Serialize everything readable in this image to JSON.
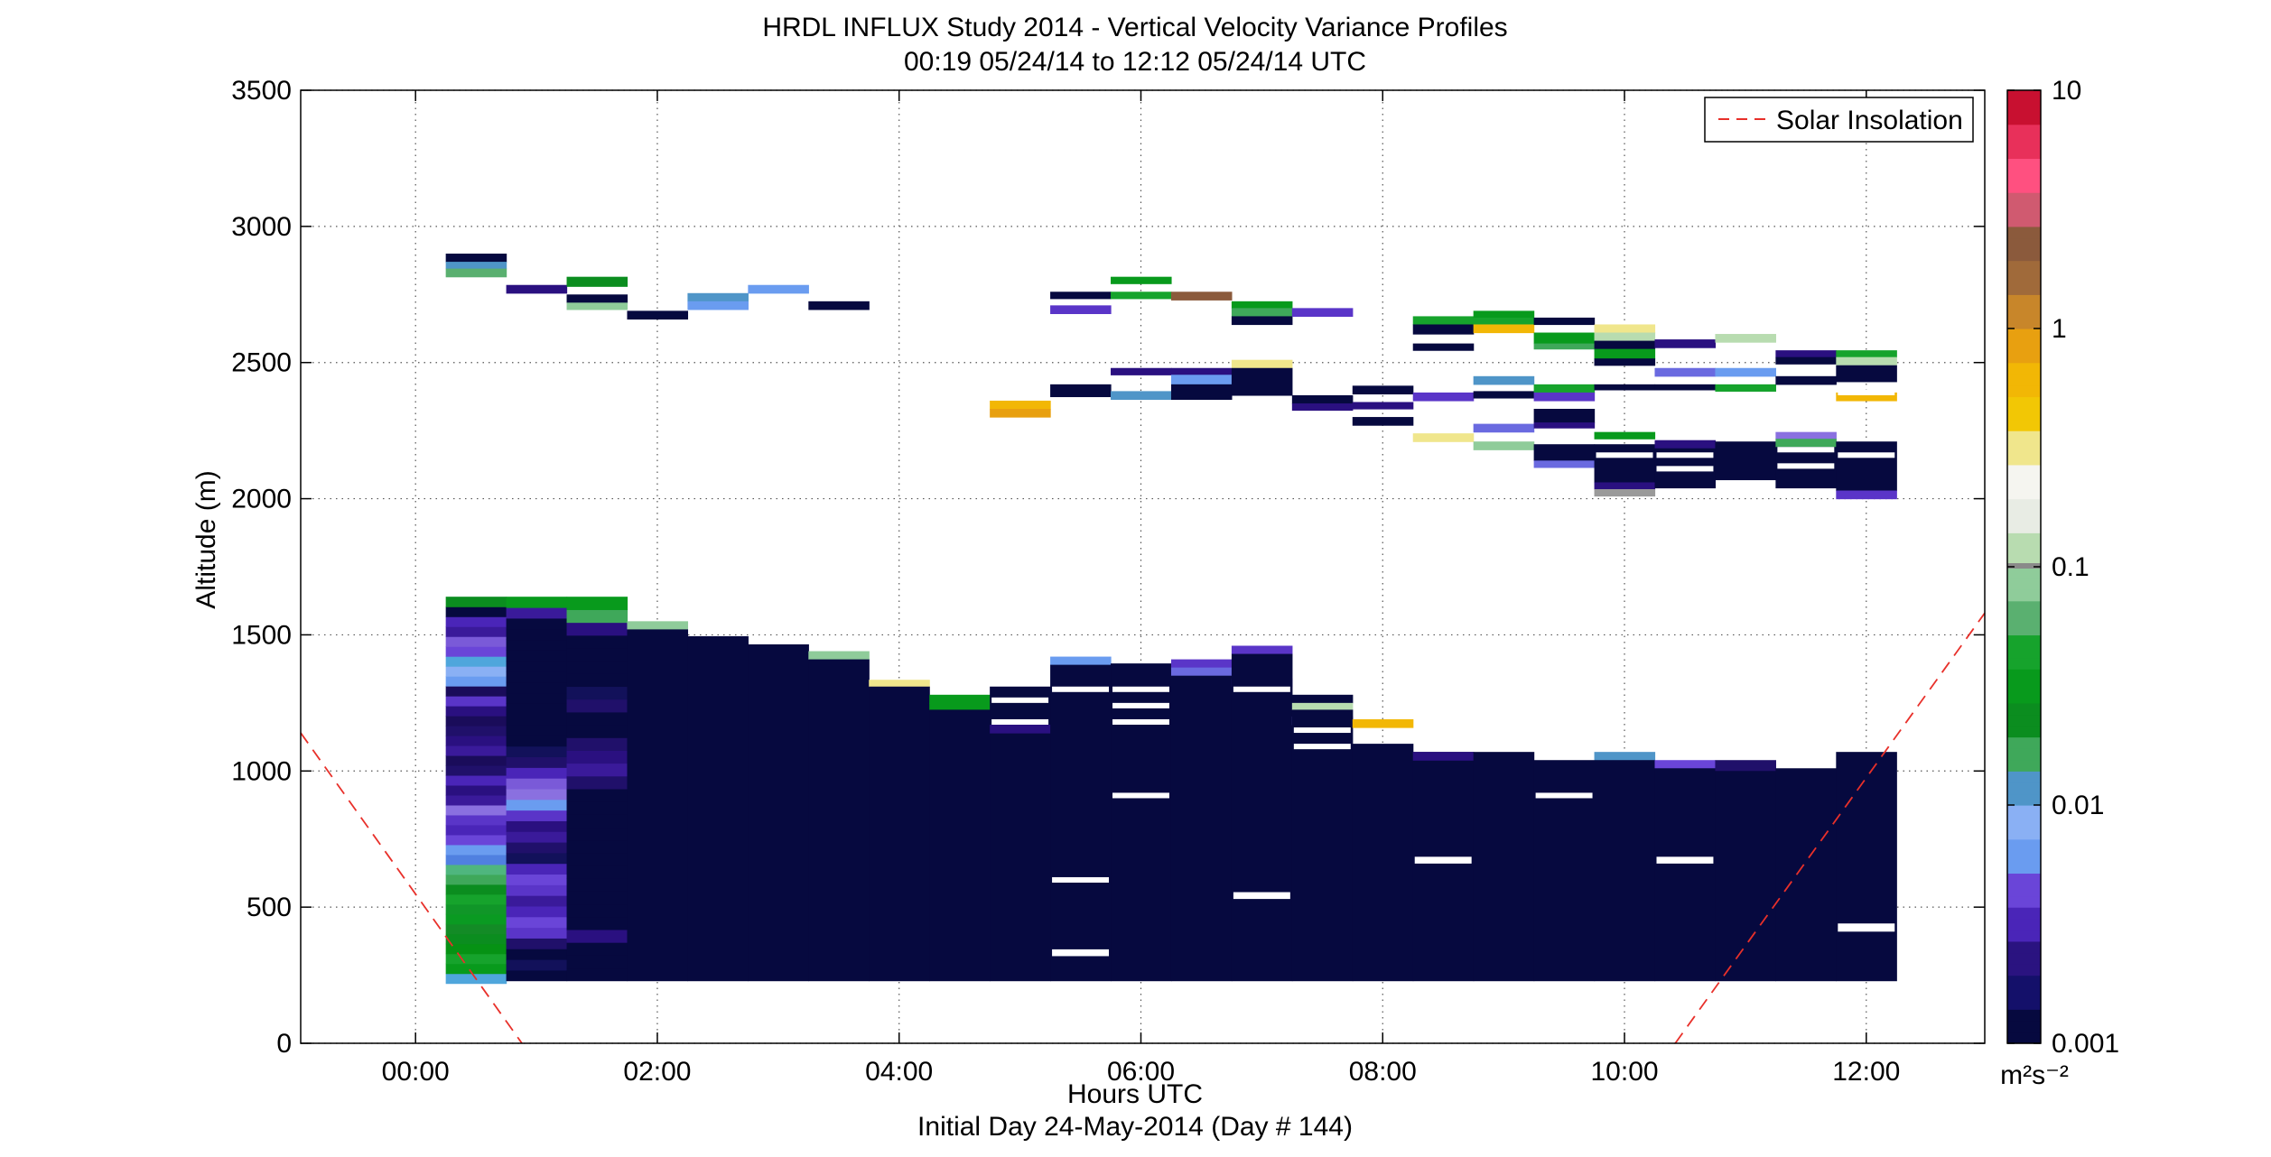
{
  "chart_data": {
    "type": "heatmap",
    "title": "HRDL INFLUX Study 2014 - Vertical Velocity Variance Profiles",
    "subtitle": "00:19 05/24/14 to 12:12 05/24/14  UTC",
    "xlabel": "Hours UTC",
    "xlabel2": "Initial Day 24-May-2014 (Day # 144)",
    "ylabel": "Altitude (m)",
    "xlim": [
      -0.95,
      12.98
    ],
    "ylim": [
      0,
      3500
    ],
    "x_ticks": [
      0,
      2,
      4,
      6,
      8,
      10,
      12
    ],
    "x_tick_labels": [
      "00:00",
      "02:00",
      "04:00",
      "06:00",
      "08:00",
      "10:00",
      "12:00"
    ],
    "y_ticks": [
      0,
      500,
      1000,
      1500,
      2000,
      2500,
      3000,
      3500
    ],
    "y_tick_labels": [
      "0",
      "500",
      "1000",
      "1500",
      "2000",
      "2500",
      "3000",
      "3500"
    ],
    "grid": true,
    "legend": {
      "position": "top-right",
      "entries": [
        "Solar Insolation"
      ]
    },
    "colorbar": {
      "scale": "log",
      "range": [
        0.001,
        10
      ],
      "ticks": [
        0.001,
        0.01,
        0.1,
        1,
        10
      ],
      "tick_labels": [
        "0.001",
        "0.01",
        "0.1",
        "1",
        "10"
      ],
      "unit_label": "m²s⁻²"
    },
    "series": [
      {
        "name": "Solar Insolation",
        "type": "line",
        "style": "dashed",
        "color": "#e8302a",
        "segments": [
          {
            "x": [
              -0.95,
              0.88
            ],
            "y": [
              1140,
              0
            ]
          },
          {
            "x": [
              10.42,
              12.98
            ],
            "y": [
              0,
              1580
            ]
          }
        ]
      }
    ],
    "profiles": [
      {
        "time": 0.5,
        "bottom": 220,
        "top": 1640,
        "stack": [
          "#4fa6dc",
          "#089a1c",
          "#16a32c",
          "#069214",
          "#0b8d1f",
          "#138b26",
          "#0a9a22",
          "#109628",
          "#16a32c",
          "#0b8d1f",
          "#3fa85a",
          "#4fb67e",
          "#5080e0",
          "#6a9cf0",
          "#6a45d8",
          "#4a25b8",
          "#5a35c8",
          "#8a70e0",
          "#3a1a9a",
          "#2a1080",
          "#4a25b8",
          "#20106a",
          "#1a0c5a",
          "#3a1a9a",
          "#2a1080",
          "#20106a",
          "#1a0c5a",
          "#2a1080",
          "#5a35c8",
          "#1a0c5a",
          "#6a9cf0",
          "#8ab0f4",
          "#4fa6dc",
          "#6a45d8",
          "#7a5ad8",
          "#3a1a9a",
          "#4a25b8",
          "#06093f",
          "#0b8d1f"
        ],
        "white_at": []
      },
      {
        "time": 1.0,
        "bottom": 230,
        "top": 1640,
        "stack": [
          "#06093f",
          "#12115a",
          "#06093f",
          "#20106a",
          "#5a35c8",
          "#6a45d8",
          "#4a25b8",
          "#3a1a9a",
          "#5a35c8",
          "#6a45d8",
          "#4a25b8",
          "#12115a",
          "#20106a",
          "#3a1a9a",
          "#2a1080",
          "#5a35c8",
          "#6a9cf0",
          "#8a70e0",
          "#7a5ad8",
          "#4a25b8",
          "#20106a",
          "#12115a",
          "#06093f",
          "#06093f",
          "#06093f",
          "#06093f",
          "#06093f",
          "#06093f",
          "#06093f",
          "#06093f",
          "#06093f",
          "#06093f",
          "#06093f",
          "#06093f",
          "#3a1a9a",
          "#089a1c"
        ],
        "white_at": []
      },
      {
        "time": 1.5,
        "bottom": 230,
        "top": 1640,
        "stack": [
          "#06093f",
          "#06093f",
          "#06093f",
          "#2a1080",
          "#06093f",
          "#06093f",
          "#06093f",
          "#06093f",
          "#06093f",
          "#06093f",
          "#06093f",
          "#06093f",
          "#06093f",
          "#06093f",
          "#06093f",
          "#20106a",
          "#3a1a9a",
          "#2a1080",
          "#20106a",
          "#06093f",
          "#06093f",
          "#20106a",
          "#12115a",
          "#06093f",
          "#06093f",
          "#06093f",
          "#06093f",
          "#2a1080",
          "#3fa85a",
          "#089a1c"
        ],
        "white_at": []
      }
    ],
    "blocks": [
      {
        "t": 0.5,
        "y0": 2870,
        "y1": 2900,
        "c": "#06093f"
      },
      {
        "t": 0.5,
        "y0": 2845,
        "y1": 2870,
        "c": "#4f95c8"
      },
      {
        "t": 0.5,
        "y0": 2815,
        "y1": 2845,
        "c": "#5ab070"
      },
      {
        "t": 1.0,
        "y0": 2755,
        "y1": 2785,
        "c": "#2a1080"
      },
      {
        "t": 1.5,
        "y0": 2780,
        "y1": 2815,
        "c": "#0b8d1f"
      },
      {
        "t": 1.5,
        "y0": 2720,
        "y1": 2750,
        "c": "#06093f"
      },
      {
        "t": 1.5,
        "y0": 2695,
        "y1": 2720,
        "c": "#8fcc9a"
      },
      {
        "t": 2.0,
        "y0": 2660,
        "y1": 2690,
        "c": "#06093f"
      },
      {
        "t": 2.5,
        "y0": 2725,
        "y1": 2755,
        "c": "#4f95c8"
      },
      {
        "t": 2.5,
        "y0": 2695,
        "y1": 2725,
        "c": "#6a9cf0"
      },
      {
        "t": 3.0,
        "y0": 2755,
        "y1": 2785,
        "c": "#6a9cf0"
      },
      {
        "t": 3.5,
        "y0": 2695,
        "y1": 2725,
        "c": "#06093f"
      },
      {
        "t": 5.0,
        "y0": 2330,
        "y1": 2360,
        "c": "#f2b705"
      },
      {
        "t": 5.0,
        "y0": 2300,
        "y1": 2330,
        "c": "#e8a010"
      },
      {
        "t": 5.5,
        "y0": 2735,
        "y1": 2760,
        "c": "#06093f"
      },
      {
        "t": 5.5,
        "y0": 2680,
        "y1": 2710,
        "c": "#5a35c8"
      },
      {
        "t": 5.5,
        "y0": 2375,
        "y1": 2420,
        "c": "#06093f"
      },
      {
        "t": 6.0,
        "y0": 2790,
        "y1": 2815,
        "c": "#089a1c"
      },
      {
        "t": 6.0,
        "y0": 2735,
        "y1": 2760,
        "c": "#16a32c"
      },
      {
        "t": 6.0,
        "y0": 2455,
        "y1": 2480,
        "c": "#2a1080"
      },
      {
        "t": 6.0,
        "y0": 2365,
        "y1": 2395,
        "c": "#4f95c8"
      },
      {
        "t": 6.5,
        "y0": 2730,
        "y1": 2760,
        "c": "#8b5a3c"
      },
      {
        "t": 6.5,
        "y0": 2455,
        "y1": 2480,
        "c": "#2a1080"
      },
      {
        "t": 6.5,
        "y0": 2420,
        "y1": 2455,
        "c": "#6a9cf0"
      },
      {
        "t": 6.5,
        "y0": 2365,
        "y1": 2420,
        "c": "#06093f"
      },
      {
        "t": 7.0,
        "y0": 2700,
        "y1": 2725,
        "c": "#089a1c"
      },
      {
        "t": 7.0,
        "y0": 2670,
        "y1": 2700,
        "c": "#3fa85a"
      },
      {
        "t": 7.0,
        "y0": 2640,
        "y1": 2670,
        "c": "#06093f"
      },
      {
        "t": 7.0,
        "y0": 2480,
        "y1": 2510,
        "c": "#f0e68c"
      },
      {
        "t": 7.0,
        "y0": 2380,
        "y1": 2480,
        "c": "#06093f"
      },
      {
        "t": 7.5,
        "y0": 2670,
        "y1": 2700,
        "c": "#5a35c8"
      },
      {
        "t": 7.5,
        "y0": 2350,
        "y1": 2380,
        "c": "#06093f"
      },
      {
        "t": 7.5,
        "y0": 2325,
        "y1": 2350,
        "c": "#2a1080"
      },
      {
        "t": 8.0,
        "y0": 2385,
        "y1": 2415,
        "c": "#06093f"
      },
      {
        "t": 8.0,
        "y0": 2330,
        "y1": 2355,
        "c": "#2a1080"
      },
      {
        "t": 8.0,
        "y0": 2270,
        "y1": 2300,
        "c": "#06093f"
      },
      {
        "t": 8.5,
        "y0": 2640,
        "y1": 2670,
        "c": "#16a32c"
      },
      {
        "t": 8.5,
        "y0": 2605,
        "y1": 2640,
        "c": "#06093f"
      },
      {
        "t": 8.5,
        "y0": 2545,
        "y1": 2570,
        "c": "#06093f"
      },
      {
        "t": 8.5,
        "y0": 2360,
        "y1": 2390,
        "c": "#5a35c8"
      },
      {
        "t": 8.5,
        "y0": 2210,
        "y1": 2240,
        "c": "#f0e68c"
      },
      {
        "t": 9.0,
        "y0": 2665,
        "y1": 2690,
        "c": "#089a1c"
      },
      {
        "t": 9.0,
        "y0": 2640,
        "y1": 2665,
        "c": "#16a32c"
      },
      {
        "t": 9.0,
        "y0": 2610,
        "y1": 2640,
        "c": "#f2b705"
      },
      {
        "t": 9.0,
        "y0": 2420,
        "y1": 2450,
        "c": "#4f95c8"
      },
      {
        "t": 9.0,
        "y0": 2370,
        "y1": 2395,
        "c": "#06093f"
      },
      {
        "t": 9.0,
        "y0": 2245,
        "y1": 2275,
        "c": "#6a6ae0"
      },
      {
        "t": 9.0,
        "y0": 2180,
        "y1": 2210,
        "c": "#8fcc9a"
      },
      {
        "t": 9.5,
        "y0": 2640,
        "y1": 2665,
        "c": "#06093f"
      },
      {
        "t": 9.5,
        "y0": 2570,
        "y1": 2610,
        "c": "#089a1c"
      },
      {
        "t": 9.5,
        "y0": 2550,
        "y1": 2570,
        "c": "#3fa85a"
      },
      {
        "t": 9.5,
        "y0": 2390,
        "y1": 2420,
        "c": "#16a32c"
      },
      {
        "t": 9.5,
        "y0": 2360,
        "y1": 2390,
        "c": "#5a35c8"
      },
      {
        "t": 9.5,
        "y0": 2280,
        "y1": 2330,
        "c": "#06093f"
      },
      {
        "t": 9.5,
        "y0": 2260,
        "y1": 2280,
        "c": "#2a1080"
      },
      {
        "t": 9.5,
        "y0": 2140,
        "y1": 2200,
        "c": "#06093f"
      },
      {
        "t": 9.5,
        "y0": 2115,
        "y1": 2140,
        "c": "#6a6ae0"
      },
      {
        "t": 10.0,
        "y0": 2610,
        "y1": 2640,
        "c": "#f0e68c"
      },
      {
        "t": 10.0,
        "y0": 2580,
        "y1": 2610,
        "c": "#b8dcb0"
      },
      {
        "t": 10.0,
        "y0": 2550,
        "y1": 2580,
        "c": "#06093f"
      },
      {
        "t": 10.0,
        "y0": 2515,
        "y1": 2550,
        "c": "#089a1c"
      },
      {
        "t": 10.0,
        "y0": 2490,
        "y1": 2515,
        "c": "#06093f"
      },
      {
        "t": 10.0,
        "y0": 2400,
        "y1": 2420,
        "c": "#06093f"
      },
      {
        "t": 10.0,
        "y0": 2220,
        "y1": 2245,
        "c": "#089a1c"
      },
      {
        "t": 10.0,
        "y0": 2060,
        "y1": 2200,
        "c": "#06093f"
      },
      {
        "t": 10.0,
        "y0": 2035,
        "y1": 2060,
        "c": "#2a1080"
      },
      {
        "t": 10.0,
        "y0": 2010,
        "y1": 2035,
        "c": "#9a9a9a"
      },
      {
        "t": 10.5,
        "y0": 2555,
        "y1": 2585,
        "c": "#2a1080"
      },
      {
        "t": 10.5,
        "y0": 2450,
        "y1": 2480,
        "c": "#6a6ae0"
      },
      {
        "t": 10.5,
        "y0": 2400,
        "y1": 2420,
        "c": "#06093f"
      },
      {
        "t": 10.5,
        "y0": 2185,
        "y1": 2215,
        "c": "#2a1080"
      },
      {
        "t": 10.5,
        "y0": 2040,
        "y1": 2185,
        "c": "#06093f"
      },
      {
        "t": 11.0,
        "y0": 2575,
        "y1": 2605,
        "c": "#b8dcb0"
      },
      {
        "t": 11.0,
        "y0": 2450,
        "y1": 2480,
        "c": "#6a9cf0"
      },
      {
        "t": 11.0,
        "y0": 2395,
        "y1": 2420,
        "c": "#16a32c"
      },
      {
        "t": 11.0,
        "y0": 2070,
        "y1": 2210,
        "c": "#06093f"
      },
      {
        "t": 11.5,
        "y0": 2520,
        "y1": 2545,
        "c": "#2a1080"
      },
      {
        "t": 11.5,
        "y0": 2495,
        "y1": 2520,
        "c": "#06093f"
      },
      {
        "t": 11.5,
        "y0": 2420,
        "y1": 2450,
        "c": "#06093f"
      },
      {
        "t": 11.5,
        "y0": 2220,
        "y1": 2245,
        "c": "#8a70e0"
      },
      {
        "t": 11.5,
        "y0": 2190,
        "y1": 2220,
        "c": "#3fa85a"
      },
      {
        "t": 11.5,
        "y0": 2040,
        "y1": 2190,
        "c": "#06093f"
      },
      {
        "t": 12.0,
        "y0": 2520,
        "y1": 2545,
        "c": "#16a32c"
      },
      {
        "t": 12.0,
        "y0": 2490,
        "y1": 2520,
        "c": "#b8dcb0"
      },
      {
        "t": 12.0,
        "y0": 2430,
        "y1": 2490,
        "c": "#06093f"
      },
      {
        "t": 12.0,
        "y0": 2360,
        "y1": 2390,
        "c": "#f2b705"
      },
      {
        "t": 12.0,
        "y0": 2030,
        "y1": 2210,
        "c": "#06093f"
      },
      {
        "t": 12.0,
        "y0": 2000,
        "y1": 2030,
        "c": "#5a35c8"
      },
      {
        "t": 2.0,
        "y0": 1520,
        "y1": 1550,
        "c": "#8fcc9a"
      },
      {
        "t": 2.0,
        "y0": 230,
        "y1": 1520,
        "c": "#06093f"
      },
      {
        "t": 2.5,
        "y0": 230,
        "y1": 1495,
        "c": "#06093f"
      },
      {
        "t": 3.0,
        "y0": 230,
        "y1": 1465,
        "c": "#06093f"
      },
      {
        "t": 3.5,
        "y0": 1410,
        "y1": 1440,
        "c": "#8fcc9a"
      },
      {
        "t": 3.5,
        "y0": 230,
        "y1": 1410,
        "c": "#06093f"
      },
      {
        "t": 4.0,
        "y0": 1310,
        "y1": 1335,
        "c": "#f0e68c"
      },
      {
        "t": 4.0,
        "y0": 230,
        "y1": 1310,
        "c": "#06093f"
      },
      {
        "t": 4.5,
        "y0": 1250,
        "y1": 1280,
        "c": "#089a1c"
      },
      {
        "t": 4.5,
        "y0": 1225,
        "y1": 1250,
        "c": "#089a1c"
      },
      {
        "t": 4.5,
        "y0": 230,
        "y1": 1225,
        "c": "#06093f"
      },
      {
        "t": 5.0,
        "y0": 230,
        "y1": 1310,
        "c": "#06093f"
      },
      {
        "t": 5.0,
        "y0": 1140,
        "y1": 1170,
        "c": "#2a1080"
      },
      {
        "t": 5.5,
        "y0": 1390,
        "y1": 1420,
        "c": "#6a9cf0"
      },
      {
        "t": 5.5,
        "y0": 230,
        "y1": 1390,
        "c": "#06093f"
      },
      {
        "t": 6.0,
        "y0": 230,
        "y1": 1395,
        "c": "#06093f"
      },
      {
        "t": 6.5,
        "y0": 1380,
        "y1": 1410,
        "c": "#5a35c8"
      },
      {
        "t": 6.5,
        "y0": 1350,
        "y1": 1380,
        "c": "#6a6ae0"
      },
      {
        "t": 6.5,
        "y0": 230,
        "y1": 1350,
        "c": "#06093f"
      },
      {
        "t": 7.0,
        "y0": 1430,
        "y1": 1460,
        "c": "#5a35c8"
      },
      {
        "t": 7.0,
        "y0": 1310,
        "y1": 1340,
        "c": "#5a35c8"
      },
      {
        "t": 7.0,
        "y0": 230,
        "y1": 1430,
        "c": "#06093f"
      },
      {
        "t": 7.5,
        "y0": 1250,
        "y1": 1280,
        "c": "#06093f"
      },
      {
        "t": 7.5,
        "y0": 1225,
        "y1": 1250,
        "c": "#b8dcb0"
      },
      {
        "t": 7.5,
        "y0": 1170,
        "y1": 1200,
        "c": "#8a70e0"
      },
      {
        "t": 7.5,
        "y0": 230,
        "y1": 1225,
        "c": "#06093f"
      },
      {
        "t": 8.0,
        "y0": 1160,
        "y1": 1190,
        "c": "#f2b705"
      },
      {
        "t": 8.0,
        "y0": 230,
        "y1": 1100,
        "c": "#06093f"
      },
      {
        "t": 8.5,
        "y0": 230,
        "y1": 1070,
        "c": "#06093f"
      },
      {
        "t": 8.5,
        "y0": 1040,
        "y1": 1070,
        "c": "#2a1080"
      },
      {
        "t": 9.0,
        "y0": 230,
        "y1": 1070,
        "c": "#06093f"
      },
      {
        "t": 9.5,
        "y0": 230,
        "y1": 1040,
        "c": "#06093f"
      },
      {
        "t": 10.0,
        "y0": 1040,
        "y1": 1070,
        "c": "#4f95c8"
      },
      {
        "t": 10.0,
        "y0": 230,
        "y1": 1040,
        "c": "#06093f"
      },
      {
        "t": 10.5,
        "y0": 1010,
        "y1": 1040,
        "c": "#6a45d8"
      },
      {
        "t": 10.5,
        "y0": 230,
        "y1": 1010,
        "c": "#06093f"
      },
      {
        "t": 11.0,
        "y0": 1000,
        "y1": 1040,
        "c": "#20106a"
      },
      {
        "t": 11.0,
        "y0": 230,
        "y1": 1000,
        "c": "#06093f"
      },
      {
        "t": 11.5,
        "y0": 230,
        "y1": 1010,
        "c": "#06093f"
      },
      {
        "t": 12.0,
        "y0": 230,
        "y1": 1070,
        "c": "#06093f"
      }
    ],
    "gaps": [
      {
        "t": 5.0,
        "y0": 1250,
        "y1": 1270
      },
      {
        "t": 5.0,
        "y0": 1170,
        "y1": 1190
      },
      {
        "t": 5.5,
        "y0": 1290,
        "y1": 1310
      },
      {
        "t": 5.5,
        "y0": 590,
        "y1": 610
      },
      {
        "t": 5.5,
        "y0": 320,
        "y1": 345
      },
      {
        "t": 6.0,
        "y0": 1290,
        "y1": 1310
      },
      {
        "t": 6.0,
        "y0": 1230,
        "y1": 1250
      },
      {
        "t": 6.0,
        "y0": 1170,
        "y1": 1190
      },
      {
        "t": 6.0,
        "y0": 900,
        "y1": 920
      },
      {
        "t": 7.0,
        "y0": 1290,
        "y1": 1310
      },
      {
        "t": 7.0,
        "y0": 530,
        "y1": 555
      },
      {
        "t": 7.5,
        "y0": 1140,
        "y1": 1160
      },
      {
        "t": 7.5,
        "y0": 1080,
        "y1": 1100
      },
      {
        "t": 8.5,
        "y0": 660,
        "y1": 685
      },
      {
        "t": 9.5,
        "y0": 900,
        "y1": 920
      },
      {
        "t": 10.0,
        "y0": 2150,
        "y1": 2170
      },
      {
        "t": 10.5,
        "y0": 2150,
        "y1": 2170
      },
      {
        "t": 10.5,
        "y0": 2100,
        "y1": 2120
      },
      {
        "t": 10.5,
        "y0": 660,
        "y1": 685
      },
      {
        "t": 11.5,
        "y0": 2170,
        "y1": 2190
      },
      {
        "t": 11.5,
        "y0": 2110,
        "y1": 2130
      },
      {
        "t": 12.0,
        "y0": 2380,
        "y1": 2400
      },
      {
        "t": 12.0,
        "y0": 2150,
        "y1": 2170
      },
      {
        "t": 12.0,
        "y0": 410,
        "y1": 440
      }
    ],
    "colormap_stops": [
      "#06093f",
      "#14106a",
      "#2a1380",
      "#4a25b8",
      "#6a45d8",
      "#6a9cf0",
      "#8ab0f4",
      "#4f95c8",
      "#3fa85a",
      "#0b8d1f",
      "#089a1c",
      "#16a32c",
      "#5ab070",
      "#8fcc9a",
      "#b8dcb0",
      "#e8ece4",
      "#f5f5f0",
      "#f0e68c",
      "#f2c705",
      "#f2b705",
      "#e8a010",
      "#c8862a",
      "#a06a3a",
      "#8b5a3c",
      "#d05a70",
      "#ff5080",
      "#e8305a",
      "#c81030"
    ]
  }
}
